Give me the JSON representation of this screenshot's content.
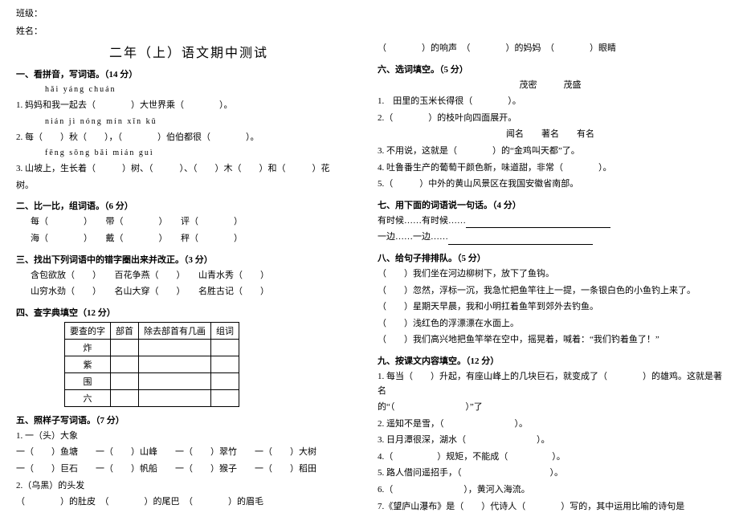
{
  "header": {
    "class_label": "班级：",
    "name_label": "姓名："
  },
  "title": "二年（上）语文期中测试",
  "s1": {
    "head": "一、看拼音，写词语。（14 分）",
    "p1": "hǎi  yáng          chuán",
    "l1": "1. 妈妈和我一起去（　　　　）大世界乘（　　　　）。",
    "p2": "nián      jì      nóng  mín        xīn  kǔ",
    "l2": "2. 每（　　）秋（　　），（　　　　）伯伯都很（　　　　）。",
    "p3": "fēng        sōng  bǎi       mián       guì",
    "l3": "3. 山坡上，生长着（　　　）树、（　　　）、（　　）木（　　）和（　　　）花",
    "l3b": "树。"
  },
  "s2": {
    "head": "二、比一比，组词语。（6 分）",
    "l1": "每（　　　　）　　带（　　　　）　　评（　　　　）",
    "l2": "海（　　　　）　　戴（　　　　）　　秤（　　　　）"
  },
  "s3": {
    "head": "三、找出下列词语中的错字圈出来并改正。（3 分）",
    "l1": "含包欲放（　　）　　百花争燕（　　）　　山青水秀（　　）",
    "l2": "山穷水劲（　　）　　名山大穿（　　）　　名胜古记（　　）"
  },
  "s4": {
    "head": "四、查字典填空（12 分）",
    "cols": [
      "要查的字",
      "部首",
      "除去部首有几画",
      "组词"
    ],
    "rows": [
      "炸",
      "紫",
      "围",
      "六"
    ]
  },
  "s5": {
    "head": "五、照样子写词语。（7 分）",
    "l1": "1. 一（头）大象",
    "l2": "一（　　）鱼塘　　一（　　）山峰　　一（　　）翠竹　　一（　　）大树",
    "l3": "一（　　）巨石　　一（　　）帆船　　一（　　）猴子　　一（　　）稻田",
    "l4": "2.（乌黑）的头发",
    "l5": "（　　　　）的肚皮　（　　　　）的尾巴　（　　　　）的眉毛",
    "r1": "（　　　　）的响声　（　　　　）的妈妈　（　　　　）眼睛"
  },
  "s6": {
    "head": "六、选词填空。（5 分）",
    "opt1": "茂密　　　茂盛",
    "l1": "1.　田里的玉米长得很（　　　　）。",
    "l2": "2.（　　　　）的枝叶向四面展开。",
    "opt2": "闻名　　著名　　有名",
    "l3": "3. 不用说，这就是（　　　　）的“金鸡叫天都”了。",
    "l4": "4. 吐鲁番生产的葡萄干颜色新，味道甜，非常（　　　　）。",
    "l5": "5.（　　　）中外的黄山风景区在我国安徽省南部。"
  },
  "s7": {
    "head": "七、用下面的词语说一句话。（4 分）",
    "l1": "有时候……有时候……",
    "l2": "一边……一边……"
  },
  "s8": {
    "head": "八、给句子排排队。（5 分）",
    "l1": "（　　）我们坐在河边柳树下，放下了鱼钩。",
    "l2": "（　　）忽然，浮标一沉，我急忙把鱼竿往上一提，一条银白色的小鱼钓上来了。",
    "l3": "（　　）星期天早晨，我和小明扛着鱼竿到郊外去钓鱼。",
    "l4": "（　　）浅红色的浮漂漂在水面上。",
    "l5": "（　　）我们高兴地把鱼竿举在空中，摇晃着，喊着：“我们钓着鱼了！”"
  },
  "s9": {
    "head": "九、按课文内容填空。（12 分）",
    "l1": "1. 每当（　　）升起，有座山峰上的几块巨石，就变成了（　　　　）的雄鸡。这就是著名",
    "l1b": "的“（　　　　　　　　）”了",
    "l2": "2. 遥知不是雪，（　　　　　　　　）。",
    "l3": "3. 日月潭很深，湖水（　　　　　　　　）。",
    "l4": "4.（　　　　　）规矩，不能成（　　　　　）。",
    "l5": "5. 路人借问遥招手，（　　　　　　　　　　）。",
    "l6": "6.（　　　　　　　　），黄河入海流。",
    "l7": "7.《望庐山瀑布》是（　　）代诗人（　　　　）写的，其中运用比喻的诗句是"
  }
}
